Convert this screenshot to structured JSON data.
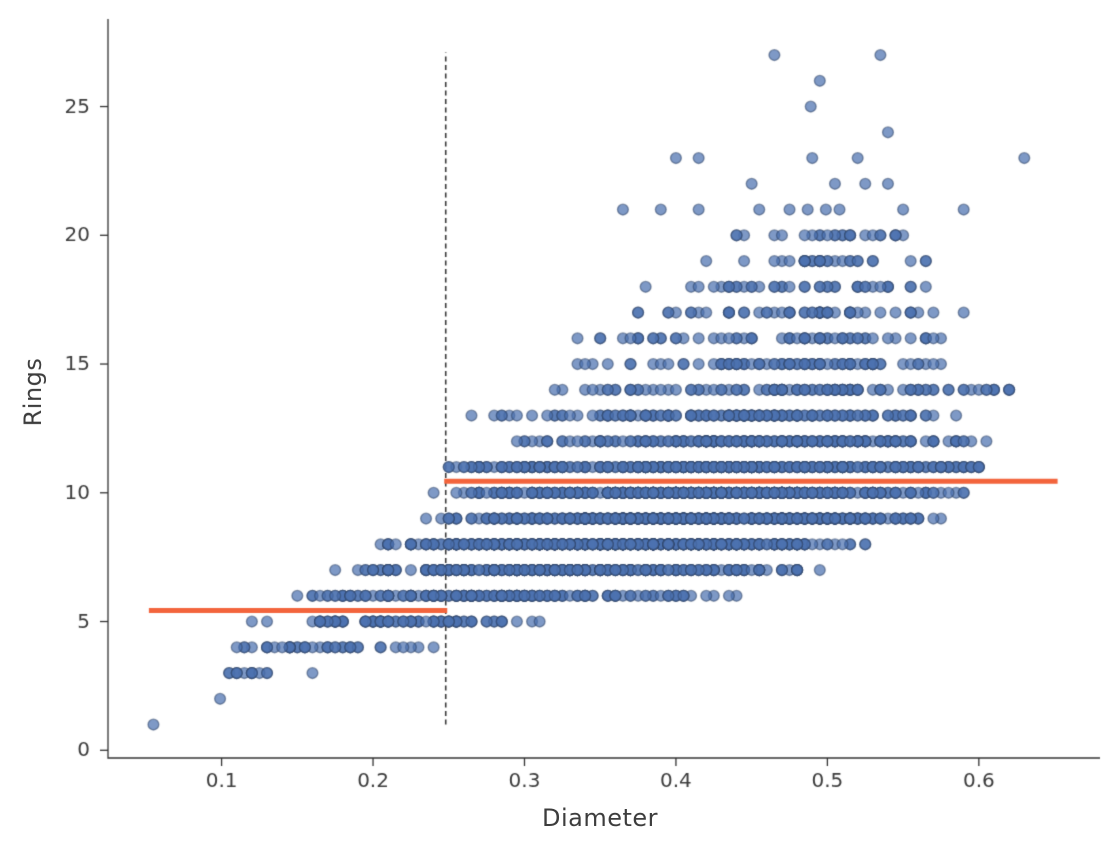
{
  "figure": {
    "background": "#ffffff"
  },
  "chart_data": {
    "type": "scatter",
    "title": "",
    "xlabel": "Diameter",
    "ylabel": "Rings",
    "xlim": [
      0.025,
      0.68
    ],
    "ylim": [
      -0.3,
      28.4
    ],
    "x_ticks": [
      0.1,
      0.2,
      0.3,
      0.4,
      0.5,
      0.6
    ],
    "y_ticks": [
      0,
      5,
      10,
      15,
      20,
      25
    ],
    "grid": false,
    "legend_position": "none",
    "marker": {
      "radius": 5.4,
      "fill": "#4c72b0",
      "fill_alpha": 0.72,
      "edge": "#32476b",
      "edge_alpha": 0.55,
      "edge_width": 1.4
    },
    "scatter_bands": [
      {
        "rings": 1,
        "points": [
          0.055
        ]
      },
      {
        "rings": 2,
        "points": [
          0.099
        ]
      },
      {
        "rings": 3,
        "count": 14,
        "d_min": 0.088,
        "d_mode": 0.115,
        "d_max": 0.177
      },
      {
        "rings": 4,
        "count": 40,
        "d_min": 0.093,
        "d_mode": 0.145,
        "d_max": 0.27
      },
      {
        "rings": 5,
        "count": 90,
        "d_min": 0.113,
        "d_mode": 0.2,
        "d_max": 0.338
      },
      {
        "rings": 6,
        "count": 180,
        "d_min": 0.129,
        "d_mode": 0.26,
        "d_max": 0.449
      },
      {
        "rings": 7,
        "count": 300,
        "d_min": 0.169,
        "d_mode": 0.31,
        "d_max": 0.51
      },
      {
        "rings": 8,
        "count": 440,
        "d_min": 0.19,
        "d_mode": 0.36,
        "d_max": 0.53
      },
      {
        "rings": 9,
        "count": 540,
        "d_min": 0.225,
        "d_mode": 0.4,
        "d_max": 0.58
      },
      {
        "rings": 10,
        "count": 500,
        "d_min": 0.235,
        "d_mode": 0.43,
        "d_max": 0.6
      },
      {
        "rings": 11,
        "count": 400,
        "d_min": 0.235,
        "d_mode": 0.45,
        "d_max": 0.635
      },
      {
        "rings": 12,
        "count": 230,
        "d_min": 0.28,
        "d_mode": 0.46,
        "d_max": 0.63
      },
      {
        "rings": 13,
        "count": 170,
        "d_min": 0.255,
        "d_mode": 0.47,
        "d_max": 0.605
      },
      {
        "rings": 14,
        "count": 110,
        "d_min": 0.304,
        "d_mode": 0.48,
        "d_max": 0.65
      },
      {
        "rings": 15,
        "count": 88,
        "d_min": 0.324,
        "d_mode": 0.49,
        "d_max": 0.6
      },
      {
        "rings": 16,
        "count": 60,
        "d_min": 0.328,
        "d_mode": 0.49,
        "d_max": 0.593
      },
      {
        "rings": 17,
        "count": 55,
        "d_min": 0.359,
        "d_mode": 0.5,
        "d_max": 0.6
      },
      {
        "rings": 18,
        "count": 40,
        "d_min": 0.369,
        "d_mode": 0.5,
        "d_max": 0.586
      },
      {
        "rings": 19,
        "count": 30,
        "d_min": 0.38,
        "d_mode": 0.5,
        "d_max": 0.57
      },
      {
        "rings": 20,
        "count": 25,
        "d_min": 0.4,
        "d_mode": 0.51,
        "d_max": 0.576
      },
      {
        "rings": 21,
        "points": [
          0.365,
          0.39,
          0.415,
          0.455,
          0.475,
          0.487,
          0.499,
          0.508,
          0.55,
          0.59
        ]
      },
      {
        "rings": 22,
        "points": [
          0.45,
          0.505,
          0.525,
          0.54
        ]
      },
      {
        "rings": 23,
        "points": [
          0.4,
          0.415,
          0.49,
          0.52,
          0.63
        ]
      },
      {
        "rings": 24,
        "points": [
          0.54
        ]
      },
      {
        "rings": 25,
        "points": [
          0.489
        ]
      },
      {
        "rings": 26,
        "points": [
          0.495
        ]
      },
      {
        "rings": 27,
        "points": [
          0.465,
          0.535
        ]
      }
    ],
    "split_line": {
      "x": 0.248,
      "y_min": 1.0,
      "y_max": 27.1,
      "style": "dashed",
      "color": "#3a3a3a",
      "width": 1.6
    },
    "prediction_segments": [
      {
        "x_start": 0.052,
        "x_end": 0.249,
        "y": 5.43
      },
      {
        "x_start": 0.247,
        "x_end": 0.652,
        "y": 10.45
      }
    ],
    "prediction_color": "#f3643c",
    "prediction_width": 5,
    "axis": {
      "spine_color": "#333333",
      "tick_color": "#333333",
      "tick_length": 8,
      "tick_label_color": "#3d3d3d",
      "tick_label_size": 20,
      "axis_label_size": 24
    }
  }
}
